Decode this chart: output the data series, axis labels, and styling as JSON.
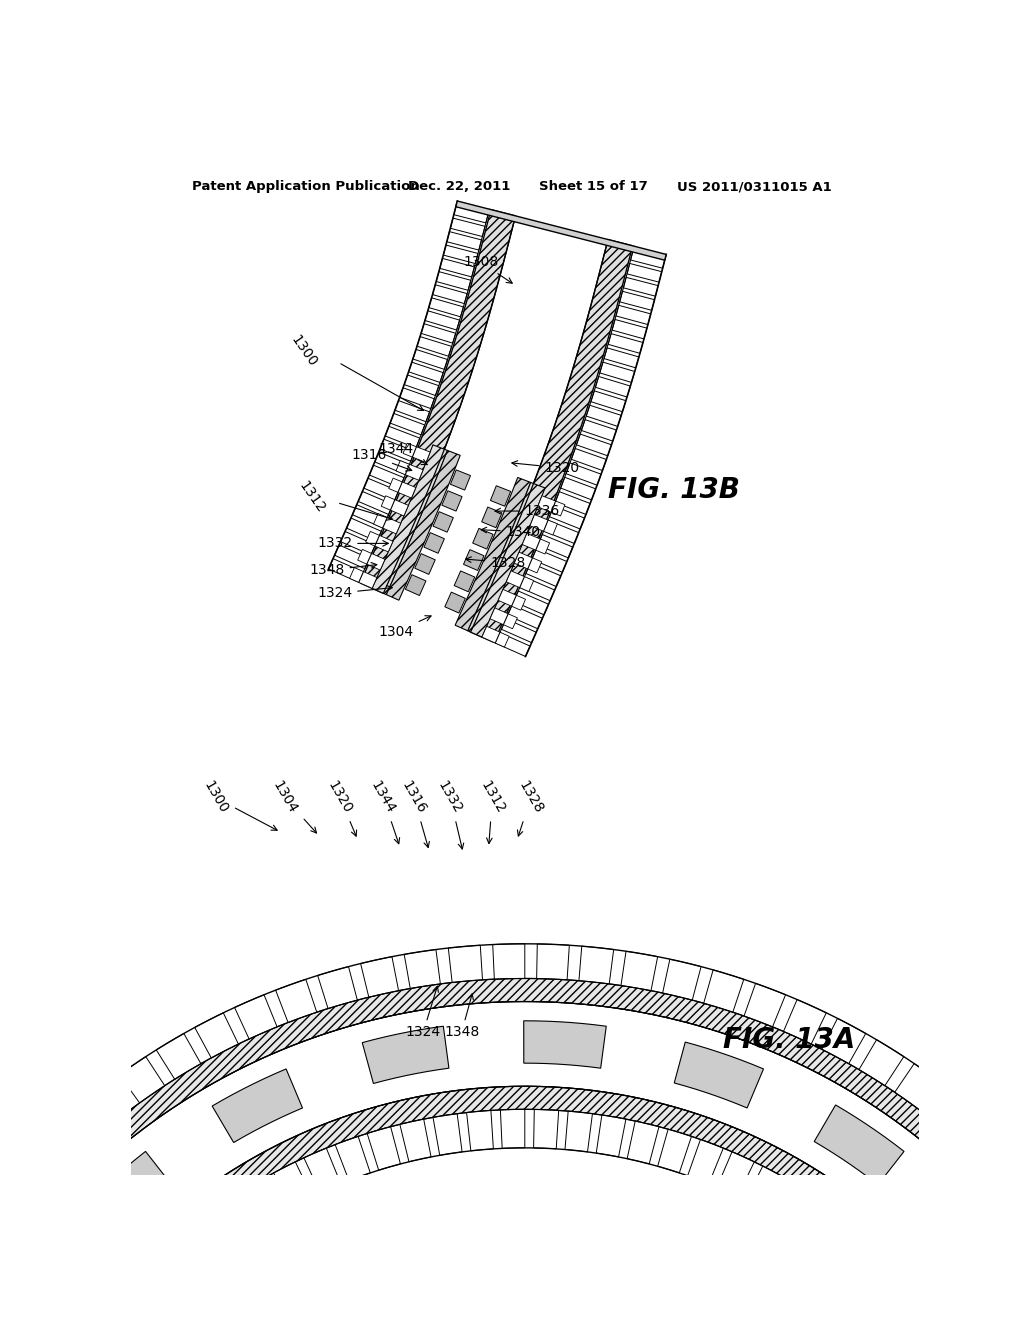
{
  "background_color": "#ffffff",
  "header_text1": "Patent Application Publication",
  "header_text2": "Dec. 22, 2011",
  "header_text3": "Sheet 15 of 17",
  "header_text4": "US 2011/0311015 A1",
  "fig_label_13B": "FIG. 13B",
  "fig_label_13A": "FIG. 13A",
  "text_color": "#000000"
}
